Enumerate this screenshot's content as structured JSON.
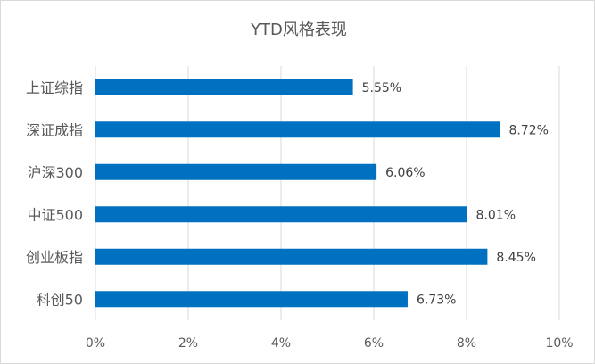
{
  "chart_data": {
    "type": "bar",
    "orientation": "horizontal",
    "title": "YTD风格表现",
    "categories": [
      "上证综指",
      "深证成指",
      "沪深300",
      "中证500",
      "创业板指",
      "科创50"
    ],
    "values": [
      5.55,
      8.72,
      6.06,
      8.01,
      8.45,
      6.73
    ],
    "data_labels": [
      "5.55%",
      "8.72%",
      "6.06%",
      "8.01%",
      "8.45%",
      "6.73%"
    ],
    "xlim": [
      0,
      10
    ],
    "x_ticks": [
      0,
      2,
      4,
      6,
      8,
      10
    ],
    "x_tick_labels": [
      "0%",
      "2%",
      "4%",
      "6%",
      "8%",
      "10%"
    ],
    "xlabel": "",
    "ylabel": "",
    "grid": true,
    "legend": "none",
    "bar_color": "#0070c0",
    "grid_color": "#d9d9d9"
  }
}
